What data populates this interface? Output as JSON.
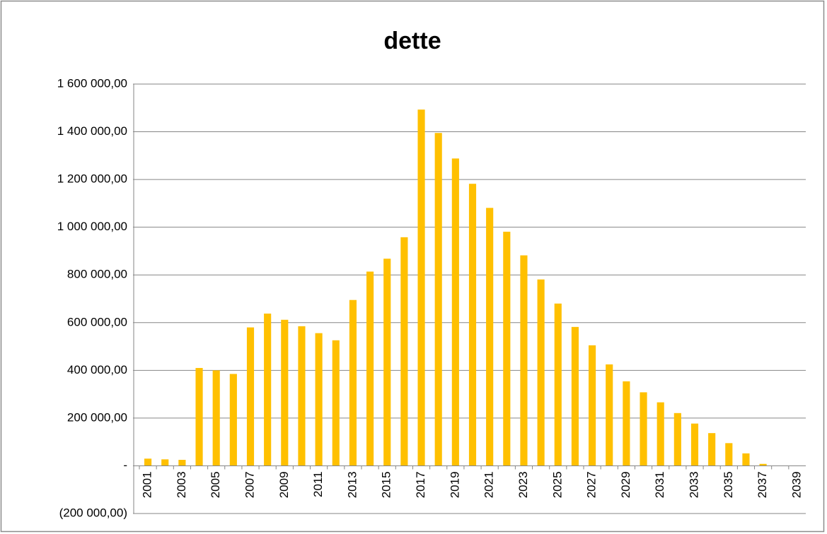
{
  "chart_data": {
    "type": "bar",
    "title": "dette",
    "categories": [
      "2001",
      null,
      "2003",
      null,
      "2005",
      null,
      "2007",
      null,
      "2009",
      null,
      "2011",
      null,
      "2013",
      null,
      "2015",
      null,
      "2017",
      null,
      "2019",
      null,
      "2021",
      null,
      "2023",
      null,
      "2025",
      null,
      "2027",
      null,
      "2029",
      null,
      "2031",
      null,
      "2033",
      null,
      "2035",
      null,
      "2037",
      null,
      "2039"
    ],
    "values": [
      30000,
      27000,
      25000,
      410000,
      400000,
      385000,
      580000,
      638000,
      612000,
      585000,
      556000,
      526000,
      695000,
      814000,
      868000,
      958000,
      1493000,
      1395000,
      1288000,
      1182000,
      1081000,
      981000,
      882000,
      781000,
      680000,
      582000,
      505000,
      425000,
      354000,
      308000,
      266000,
      221000,
      177000,
      137000,
      95000,
      52000,
      8000,
      0,
      0
    ],
    "color": "#ffc000",
    "ylim": [
      -200000,
      1600000
    ],
    "yticks": [
      {
        "value": -200000,
        "label": "(200 000,00)"
      },
      {
        "value": 0,
        "label": "-"
      },
      {
        "value": 200000,
        "label": "200 000,00"
      },
      {
        "value": 400000,
        "label": "400 000,00"
      },
      {
        "value": 600000,
        "label": "600 000,00"
      },
      {
        "value": 800000,
        "label": "800 000,00"
      },
      {
        "value": 1000000,
        "label": "1 000 000,00"
      },
      {
        "value": 1200000,
        "label": "1 200 000,00"
      },
      {
        "value": 1400000,
        "label": "1 400 000,00"
      },
      {
        "value": 1600000,
        "label": "1 600 000,00"
      }
    ],
    "grid": true
  }
}
